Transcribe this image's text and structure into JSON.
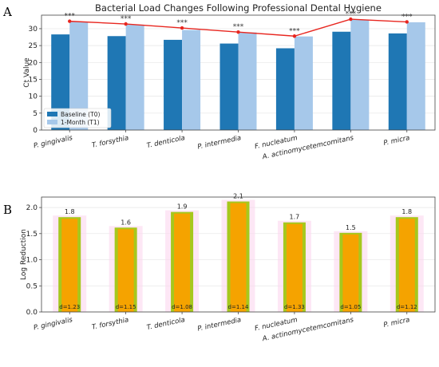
{
  "panel_labels": [
    "A",
    "B"
  ],
  "chart_data": [
    {
      "type": "bar",
      "panel": "A",
      "title": "Bacterial Load Changes Following Professional Dental Hygiene",
      "ylabel": "Ct Value",
      "xlabel": "",
      "ylim": [
        0,
        34
      ],
      "yticks": [
        0,
        5,
        10,
        15,
        20,
        25,
        30
      ],
      "grid": true,
      "legend_position": "lower-left",
      "categories": [
        "P. gingivalis",
        "T. forsythia",
        "T. denticola",
        "P. intermedia",
        "F. nucleatum",
        "A. actinomycetemcomitans",
        "P. micra"
      ],
      "series": [
        {
          "name": "Baseline (T0)",
          "color": "#1f77b4",
          "values": [
            28.3,
            27.8,
            26.7,
            25.6,
            24.2,
            29.1,
            28.6
          ]
        },
        {
          "name": "1-Month (T1)",
          "color": "#a6c8ea",
          "values": [
            32.0,
            31.2,
            29.6,
            28.9,
            27.7,
            32.6,
            31.9
          ]
        }
      ],
      "line": {
        "color": "#e8261f",
        "values": [
          32.2,
          31.4,
          30.2,
          29.0,
          27.8,
          32.8,
          32.0
        ]
      },
      "annotations": [
        "***",
        "***",
        "***",
        "***",
        "***",
        "***",
        "***"
      ]
    },
    {
      "type": "bar",
      "panel": "B",
      "title": "",
      "ylabel": "Log Reduction",
      "xlabel": "",
      "ylim": [
        0,
        2.2
      ],
      "yticks": [
        "0.0",
        "0.5",
        "1.0",
        "1.5",
        "2.0"
      ],
      "grid": true,
      "categories": [
        "P. gingivalis",
        "T. forsythia",
        "T. denticola",
        "P. intermedia",
        "F. nucleatum",
        "A. actinomycetemcomitans",
        "P. micra"
      ],
      "values": [
        1.8,
        1.6,
        1.9,
        2.1,
        1.7,
        1.5,
        1.8
      ],
      "value_labels": [
        "1.8",
        "1.6",
        "1.9",
        "2.1",
        "1.7",
        "1.5",
        "1.8"
      ],
      "effect_sizes": [
        "d=1.23",
        "d=1.15",
        "d=1.08",
        "d=1.14",
        "d=1.33",
        "d=1.05",
        "d=1.12"
      ],
      "bar_color": "#f5a300",
      "edge_color": "#a6c81e",
      "halo_color": "#fbd7ee"
    }
  ]
}
